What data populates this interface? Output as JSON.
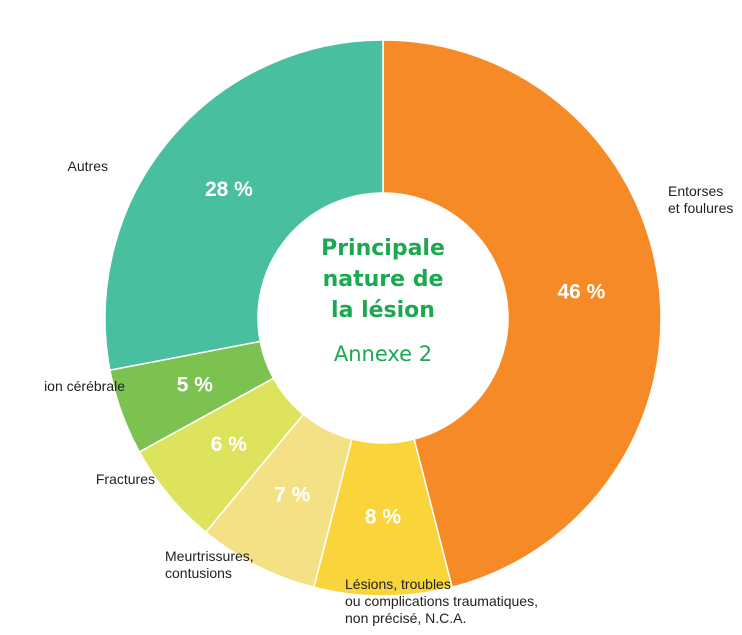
{
  "chart_data": {
    "type": "donut",
    "title": [
      "Principale",
      "nature de",
      "la lésion"
    ],
    "subtitle": "Annexe 2",
    "categories": [
      [
        "Entorses",
        "et foulures"
      ],
      [
        "Lésions, troubles",
        "ou complications traumatiques,",
        "non précisé, N.C.A."
      ],
      [
        "Meurtrissures,",
        "contusions"
      ],
      [
        "Fractures"
      ],
      [
        "ion cérébrale"
      ],
      [
        "Autres"
      ]
    ],
    "values": [
      46,
      8,
      7,
      6,
      5,
      28
    ],
    "value_labels": [
      "46 %",
      "8 %",
      "7 %",
      "6 %",
      "5 %",
      "28 %"
    ],
    "colors": [
      "#f58a27",
      "#f9d43a",
      "#f5e185",
      "#dde35c",
      "#7cc251",
      "#48bf9f"
    ]
  }
}
